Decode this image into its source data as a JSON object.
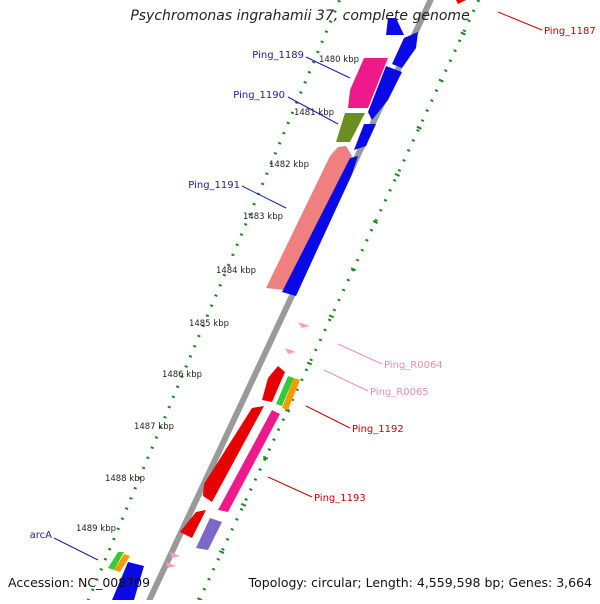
{
  "title": "Psychromonas ingrahamii 37, complete genome",
  "accession": "Accession: NC_008709",
  "summary": "Topology: circular; Length: 4,559,598 bp; Genes: 3,664",
  "ticks": [
    "1480 kbp",
    "1481 kbp",
    "1482 kbp",
    "1483 kbp",
    "1484 kbp",
    "1485 kbp",
    "1486 kbp",
    "1487 kbp",
    "1488 kbp",
    "1489 kbp"
  ],
  "labels": {
    "ping_1187": "Ping_1187",
    "ping_1189": "Ping_1189",
    "ping_1190": "Ping_1190",
    "ping_1191": "Ping_1191",
    "ping_r0064": "Ping_R0064",
    "ping_r0065": "Ping_R0065",
    "ping_1192": "Ping_1192",
    "ping_1193": "Ping_1193",
    "arca": "arcA"
  },
  "colors": {
    "forward_label": "#1a1aa8",
    "reverse_label": "#cc0000",
    "rna_label": "#e58fb0",
    "backbone": "#9a9a9a",
    "tick_marks": "#1e8a1e",
    "cds_blue": "#0a0ae6",
    "cds_red": "#e60000",
    "cds_pink": "#ee1a8c",
    "cds_salmon": "#f08080",
    "cds_olive": "#6b8e23",
    "cds_green": "#33cc33",
    "cds_orange": "#ff9900",
    "cds_slate": "#7b68c8",
    "rna_pink": "#ff99cc"
  }
}
